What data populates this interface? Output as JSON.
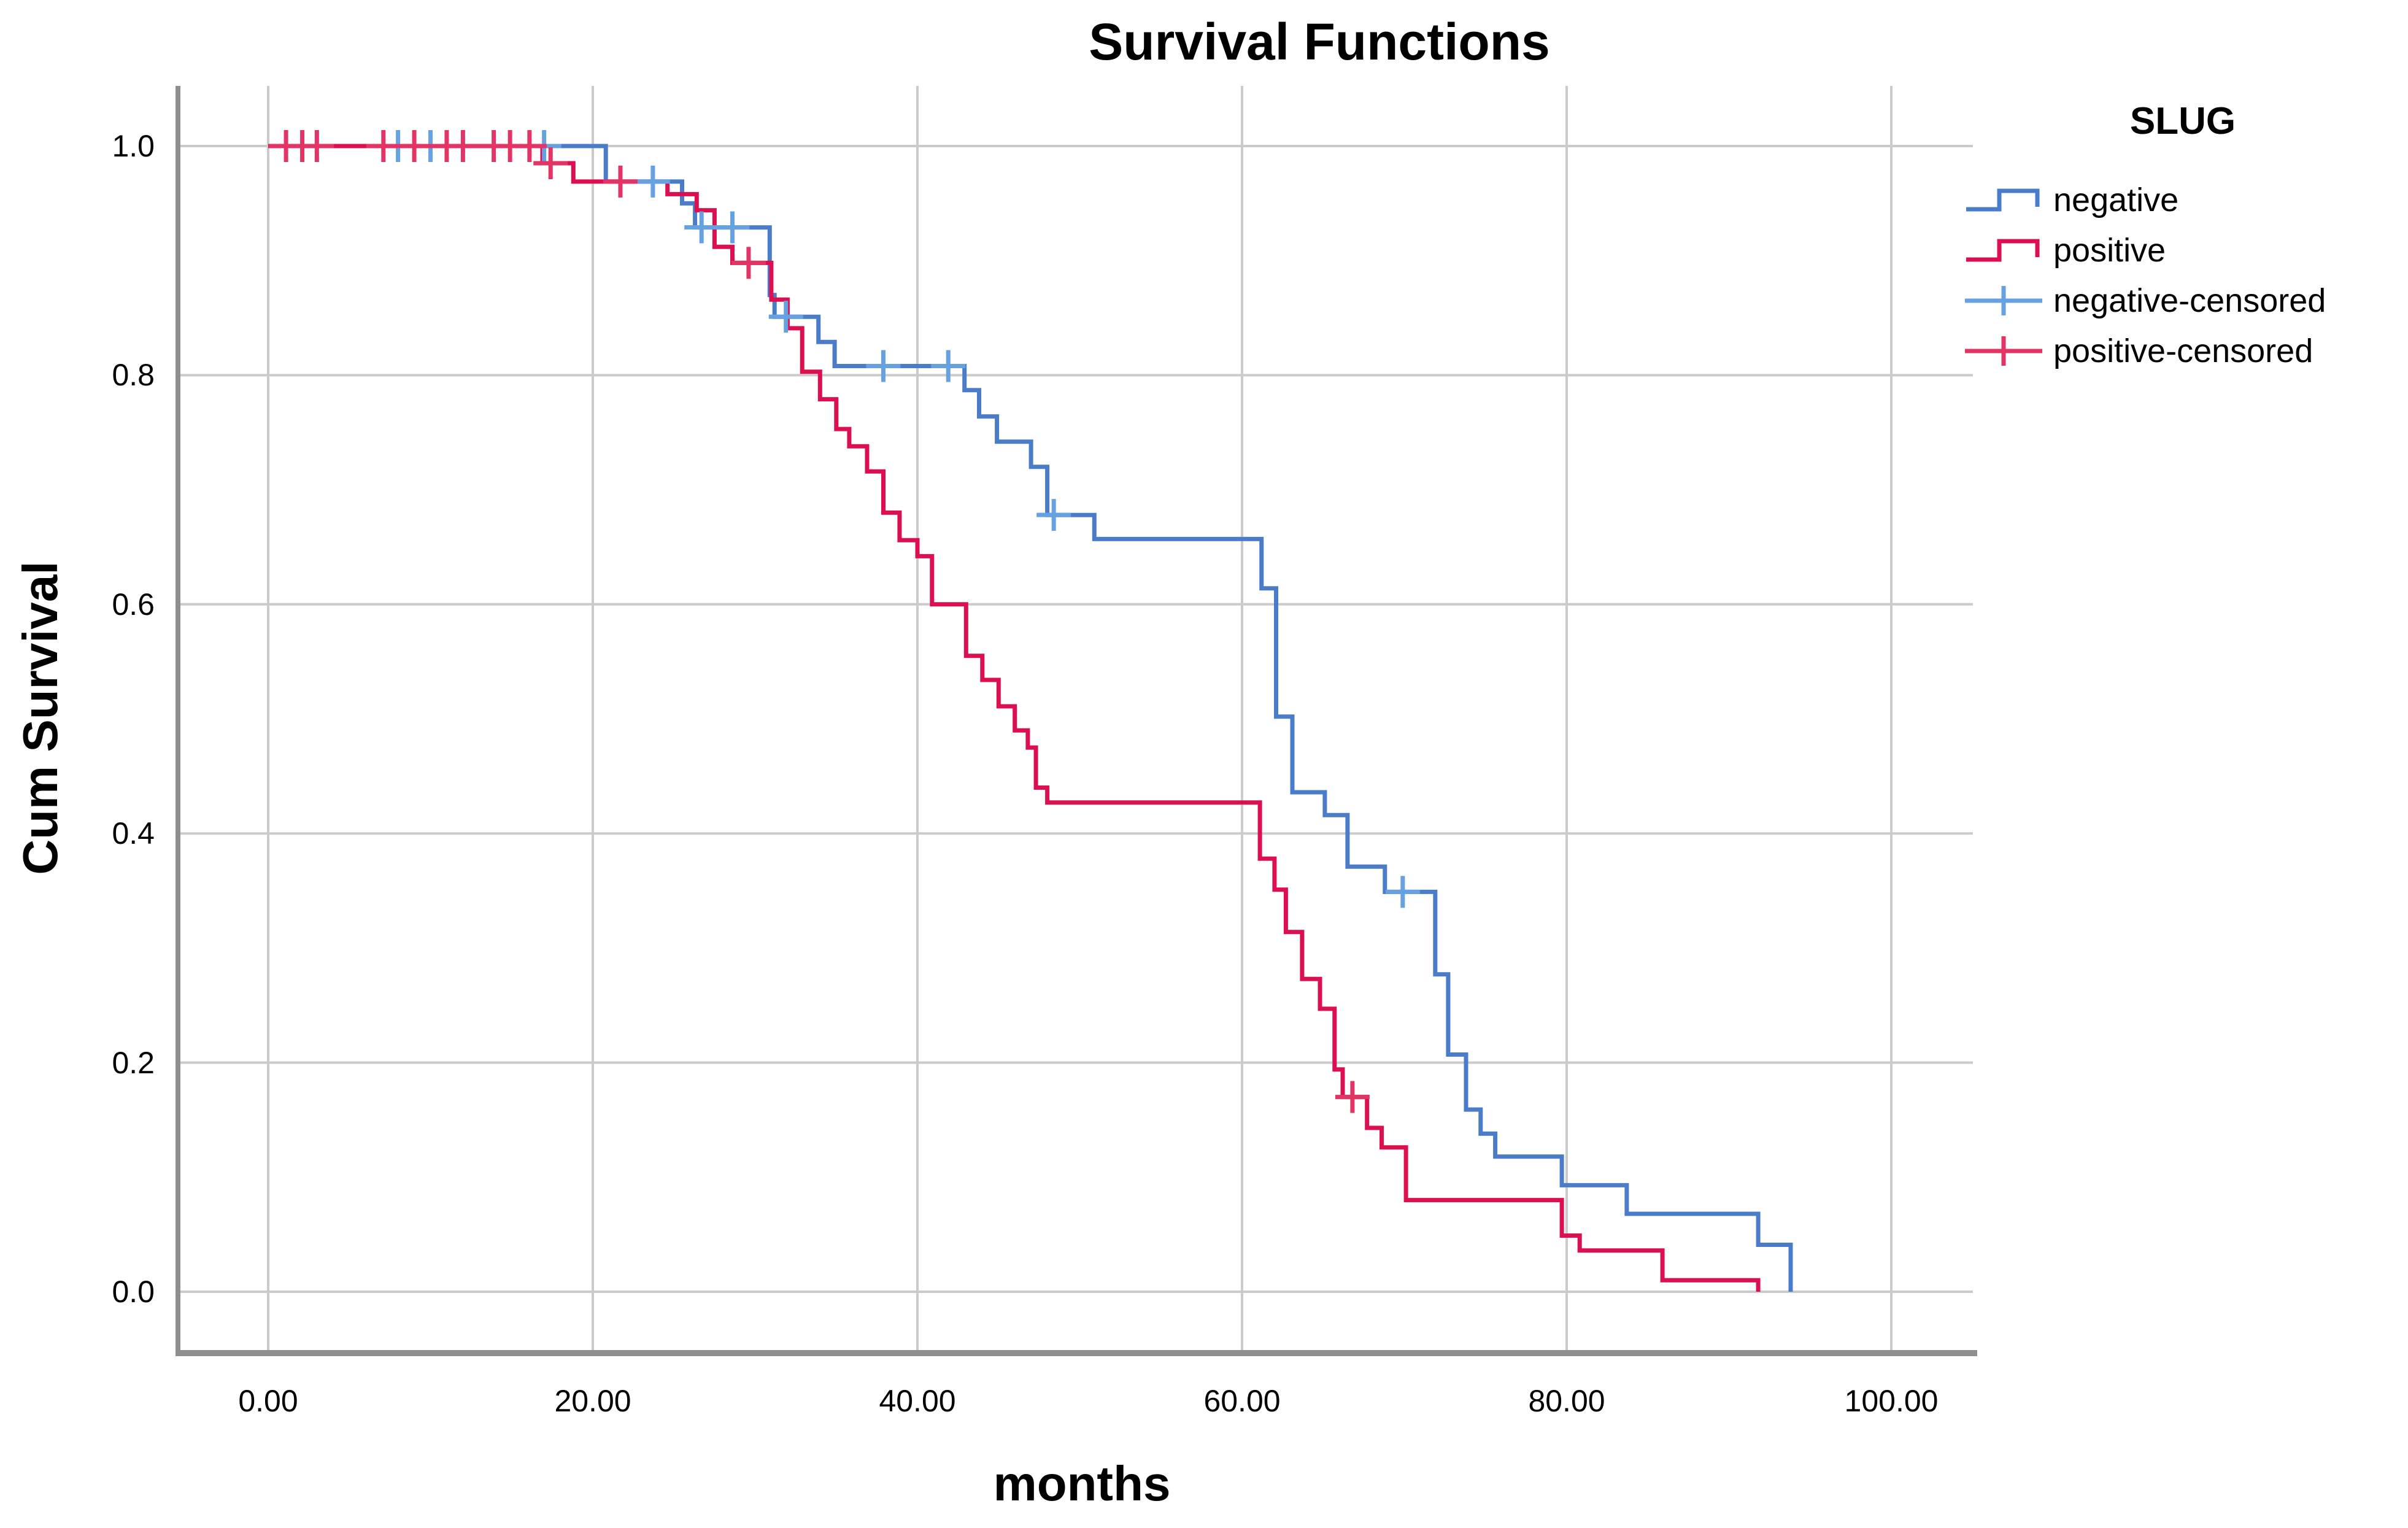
{
  "title": "Survival Functions",
  "x_axis": {
    "label": "months",
    "ticks": [
      "0.00",
      "20.00",
      "40.00",
      "60.00",
      "80.00",
      "100.00"
    ],
    "tick_values": [
      0,
      20,
      40,
      60,
      80,
      100
    ]
  },
  "y_axis": {
    "label": "Cum Survival",
    "ticks": [
      "1.0",
      "0.8",
      "0.6",
      "0.4",
      "0.2",
      "0.0"
    ],
    "tick_values": [
      1.0,
      0.8,
      0.6,
      0.4,
      0.2,
      0.0
    ]
  },
  "legend": {
    "title": "SLUG",
    "items": [
      {
        "label": "negative",
        "type": "step",
        "color": "#4A7CC9"
      },
      {
        "label": "positive",
        "type": "step",
        "color": "#DC1050"
      },
      {
        "label": "negative-censored",
        "type": "plus",
        "color": "#66A1E2"
      },
      {
        "label": "positive-censored",
        "type": "plus",
        "color": "#E23565"
      }
    ]
  },
  "chart_data": {
    "type": "line",
    "subtype": "kaplan-meier-step",
    "title": "Survival Functions",
    "xlabel": "months",
    "ylabel": "Cum Survival",
    "xlim": [
      0,
      100
    ],
    "ylim": [
      0.0,
      1.0
    ],
    "grid": true,
    "legend_position": "right",
    "grid_color": "#CBCBCB",
    "axis_color": "#8E8E8E",
    "series": [
      {
        "name": "negative",
        "color": "#4A7CC9",
        "censor_color": "#66A1E2",
        "start": [
          0,
          1.0
        ],
        "steps": [
          [
            20.8,
            0.969
          ],
          [
            25.5,
            0.95
          ],
          [
            26.3,
            0.929
          ],
          [
            30.9,
            0.87
          ],
          [
            31.2,
            0.851
          ],
          [
            33.9,
            0.829
          ],
          [
            34.9,
            0.808
          ],
          [
            42.9,
            0.787
          ],
          [
            43.8,
            0.764
          ],
          [
            44.9,
            0.742
          ],
          [
            47.0,
            0.72
          ],
          [
            48.0,
            0.678
          ],
          [
            50.9,
            0.657
          ],
          [
            61.2,
            0.614
          ],
          [
            62.1,
            0.502
          ],
          [
            63.1,
            0.436
          ],
          [
            65.1,
            0.416
          ],
          [
            66.5,
            0.371
          ],
          [
            68.8,
            0.349
          ],
          [
            71.9,
            0.277
          ],
          [
            72.7,
            0.207
          ],
          [
            73.8,
            0.159
          ],
          [
            74.7,
            0.138
          ],
          [
            75.6,
            0.118
          ],
          [
            79.7,
            0.093
          ],
          [
            83.7,
            0.068
          ],
          [
            91.8,
            0.041
          ],
          [
            93.8,
            0.0
          ]
        ],
        "end": 93.8,
        "censored": [
          [
            8.0,
            1.0
          ],
          [
            10.0,
            1.0
          ],
          [
            17.0,
            1.0
          ],
          [
            23.7,
            0.969
          ],
          [
            26.7,
            0.929
          ],
          [
            28.6,
            0.929
          ],
          [
            31.9,
            0.851
          ],
          [
            37.9,
            0.808
          ],
          [
            41.9,
            0.808
          ],
          [
            48.4,
            0.678
          ],
          [
            69.9,
            0.349
          ]
        ]
      },
      {
        "name": "positive",
        "color": "#DC1050",
        "censor_color": "#E23565",
        "start": [
          0,
          1.0
        ],
        "steps": [
          [
            16.9,
            0.985
          ],
          [
            18.8,
            0.969
          ],
          [
            24.6,
            0.958
          ],
          [
            26.4,
            0.944
          ],
          [
            27.5,
            0.912
          ],
          [
            28.6,
            0.898
          ],
          [
            31.0,
            0.866
          ],
          [
            32.0,
            0.841
          ],
          [
            32.9,
            0.803
          ],
          [
            34.0,
            0.779
          ],
          [
            35.0,
            0.753
          ],
          [
            35.8,
            0.738
          ],
          [
            36.9,
            0.716
          ],
          [
            37.9,
            0.68
          ],
          [
            38.9,
            0.656
          ],
          [
            40.0,
            0.642
          ],
          [
            40.9,
            0.6
          ],
          [
            43.0,
            0.555
          ],
          [
            44.0,
            0.534
          ],
          [
            45.0,
            0.511
          ],
          [
            46.0,
            0.49
          ],
          [
            46.8,
            0.475
          ],
          [
            47.3,
            0.44
          ],
          [
            48.0,
            0.427
          ],
          [
            61.1,
            0.378
          ],
          [
            62.0,
            0.351
          ],
          [
            62.7,
            0.314
          ],
          [
            63.7,
            0.273
          ],
          [
            64.8,
            0.247
          ],
          [
            65.7,
            0.194
          ],
          [
            66.2,
            0.17
          ],
          [
            67.7,
            0.143
          ],
          [
            68.6,
            0.126
          ],
          [
            70.1,
            0.08
          ],
          [
            79.7,
            0.049
          ],
          [
            80.8,
            0.036
          ],
          [
            85.9,
            0.01
          ],
          [
            91.8,
            0.0
          ]
        ],
        "end": 91.8,
        "censored": [
          [
            1.1,
            1.0
          ],
          [
            2.1,
            1.0
          ],
          [
            3.0,
            1.0
          ],
          [
            7.1,
            1.0
          ],
          [
            9.0,
            1.0
          ],
          [
            11.0,
            1.0
          ],
          [
            12.0,
            1.0
          ],
          [
            13.9,
            1.0
          ],
          [
            14.9,
            1.0
          ],
          [
            16.1,
            1.0
          ],
          [
            17.4,
            0.985
          ],
          [
            21.7,
            0.969
          ],
          [
            29.6,
            0.898
          ],
          [
            66.8,
            0.17
          ]
        ]
      }
    ]
  }
}
